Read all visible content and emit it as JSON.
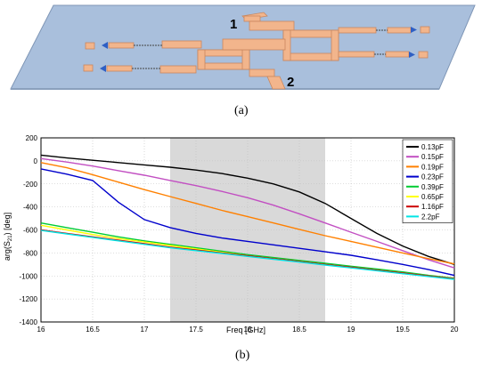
{
  "panel_a": {
    "caption": "(a)",
    "port_1_label": "1",
    "port_2_label": "2"
  },
  "panel_b": {
    "caption": "(b)"
  },
  "chart_data": {
    "type": "line",
    "xlabel": "Freq [GHz]",
    "ylabel": "arg(S21) [deg]",
    "xlim": [
      16,
      20
    ],
    "ylim": [
      -1400,
      200
    ],
    "xticks": [
      "16",
      "16.5",
      "17",
      "17.5",
      "18",
      "18.5",
      "19",
      "19.5",
      "20"
    ],
    "yticks": [
      "200",
      "0",
      "-200",
      "-400",
      "-600",
      "-800",
      "-1000",
      "-1200",
      "-1400"
    ],
    "grid": true,
    "legend_position": "top-right",
    "shaded_band": {
      "x_start": 17.25,
      "x_end": 18.75,
      "color": "#d9d9d9"
    },
    "x": [
      16,
      16.25,
      16.5,
      16.75,
      17,
      17.25,
      17.5,
      17.75,
      18,
      18.25,
      18.5,
      18.75,
      19,
      19.25,
      19.5,
      19.75,
      20
    ],
    "series": [
      {
        "name": "0.13pF",
        "color": "#000000",
        "values": [
          50,
          25,
          5,
          -15,
          -35,
          -55,
          -80,
          -110,
          -150,
          -200,
          -270,
          -370,
          -500,
          -630,
          -740,
          -830,
          -900
        ]
      },
      {
        "name": "0.15pF",
        "color": "#c24fc2",
        "values": [
          20,
          -10,
          -45,
          -85,
          -125,
          -170,
          -215,
          -265,
          -320,
          -385,
          -460,
          -540,
          -620,
          -700,
          -780,
          -860,
          -930
        ]
      },
      {
        "name": "0.19pF",
        "color": "#ff8000",
        "values": [
          -15,
          -60,
          -120,
          -185,
          -250,
          -310,
          -370,
          -430,
          -485,
          -540,
          -595,
          -650,
          -700,
          -750,
          -800,
          -850,
          -895
        ]
      },
      {
        "name": "0.23pF",
        "color": "#0000cc",
        "values": [
          -70,
          -115,
          -170,
          -360,
          -510,
          -580,
          -630,
          -670,
          -700,
          -730,
          -760,
          -790,
          -820,
          -860,
          -900,
          -945,
          -995
        ]
      },
      {
        "name": "0.39pF",
        "color": "#00cc33",
        "values": [
          -540,
          -580,
          -620,
          -660,
          -695,
          -725,
          -755,
          -785,
          -815,
          -840,
          -865,
          -890,
          -915,
          -940,
          -965,
          -995,
          -1020
        ]
      },
      {
        "name": "0.65pF",
        "color": "#ffff00",
        "values": [
          -560,
          -600,
          -640,
          -675,
          -705,
          -735,
          -765,
          -795,
          -825,
          -850,
          -875,
          -900,
          -925,
          -950,
          -975,
          -1000,
          -1025
        ]
      },
      {
        "name": "1.16pF",
        "color": "#cc0000",
        "values": [
          -600,
          -630,
          -660,
          -690,
          -720,
          -750,
          -775,
          -800,
          -825,
          -850,
          -875,
          -900,
          -925,
          -950,
          -975,
          -1000,
          -1025
        ]
      },
      {
        "name": "2.2pF",
        "color": "#00e5e5",
        "values": [
          -605,
          -635,
          -665,
          -695,
          -725,
          -755,
          -780,
          -805,
          -830,
          -855,
          -880,
          -905,
          -930,
          -955,
          -980,
          -1005,
          -1030
        ]
      }
    ]
  }
}
